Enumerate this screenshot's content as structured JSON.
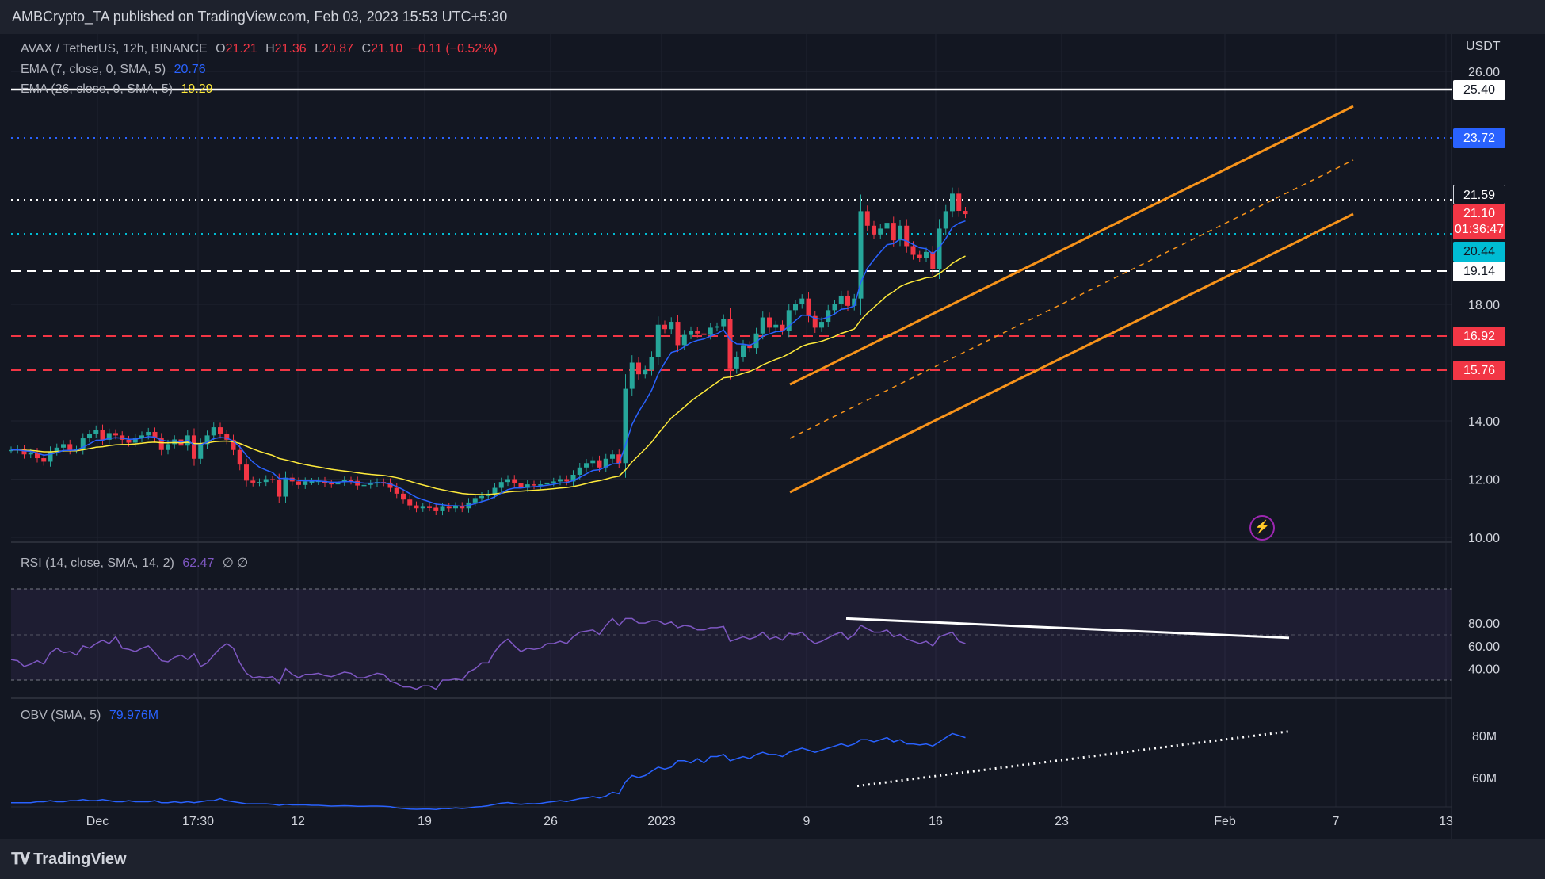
{
  "header": {
    "title": "AMBCrypto_TA published on TradingView.com, Feb 03, 2023 15:53 UTC+5:30"
  },
  "legend": {
    "symbol": "AVAX / TetherUS, 12h, BINANCE",
    "o_label": "O",
    "o": "21.21",
    "h_label": "H",
    "h": "21.36",
    "l_label": "L",
    "l": "20.87",
    "c_label": "C",
    "c": "21.10",
    "change": "−0.11 (−0.52%)",
    "ema7_name": "EMA (7, close, 0, SMA, 5)",
    "ema7_value": "20.76",
    "ema26_name": "EMA (26, close, 0, SMA, 5)",
    "ema26_value": "19.29",
    "rsi_name": "RSI (14, close, SMA, 14, 2)",
    "rsi_value": "62.47",
    "rsi_extra": "∅ ∅",
    "obv_name": "OBV (SMA, 5)",
    "obv_value": "79.976M"
  },
  "currency": "USDT",
  "price_tags": {
    "level_2540": "25.40",
    "level_2372": "23.72",
    "level_2159": "21.59",
    "current_price": "21.10",
    "countdown": "01:36:47",
    "level_2044": "20.44",
    "level_1914": "19.14",
    "level_1692": "16.92",
    "level_1576": "15.76"
  },
  "colors": {
    "background": "#131722",
    "up": "#26a69a",
    "down": "#f23645",
    "ema7": "#2962ff",
    "ema26": "#ffeb3b",
    "channel": "#f7931a",
    "rsi": "#7e57c2",
    "obv": "#2962ff"
  },
  "footer": {
    "brand": "TradingView"
  },
  "chart_data": [
    {
      "type": "candlestick",
      "title": "AVAX / TetherUS, 12h, BINANCE",
      "ylim": [
        10,
        27
      ],
      "y_ticks": [
        "10.00",
        "12.00",
        "14.00",
        "18.00",
        "26.00"
      ],
      "x_ticks": [
        "Dec",
        "17:30",
        "12",
        "19",
        "26",
        "2023",
        "9",
        "16",
        "23",
        "Feb",
        "7",
        "13"
      ],
      "closes": [
        13.0,
        13.03,
        12.85,
        12.92,
        12.72,
        12.6,
        12.95,
        13.08,
        13.2,
        13.0,
        13.02,
        13.4,
        13.55,
        13.7,
        13.35,
        13.58,
        13.5,
        13.35,
        13.25,
        13.4,
        13.5,
        13.62,
        13.4,
        13.0,
        13.2,
        13.36,
        13.15,
        13.5,
        12.7,
        13.2,
        13.5,
        13.78,
        13.55,
        13.35,
        13.0,
        12.5,
        11.95,
        11.88,
        11.9,
        12.0,
        11.98,
        11.4,
        12.05,
        11.92,
        11.8,
        11.92,
        11.92,
        11.94,
        11.86,
        11.82,
        11.9,
        11.96,
        11.94,
        11.78,
        11.8,
        11.86,
        11.9,
        11.88,
        11.7,
        11.5,
        11.3,
        11.1,
        11.0,
        11.05,
        11.02,
        10.9,
        11.05,
        11.0,
        11.08,
        11.0,
        11.2,
        11.35,
        11.42,
        11.5,
        11.7,
        11.9,
        12.0,
        11.85,
        11.7,
        11.82,
        11.78,
        11.82,
        11.88,
        11.92,
        12.0,
        11.92,
        12.15,
        12.4,
        12.55,
        12.65,
        12.4,
        12.7,
        12.85,
        12.55,
        15.1,
        16.0,
        15.6,
        15.75,
        16.2,
        17.3,
        17.15,
        17.4,
        16.6,
        16.95,
        17.1,
        17.0,
        16.95,
        17.2,
        17.25,
        17.5,
        15.8,
        16.2,
        16.6,
        16.5,
        17.0,
        17.55,
        17.2,
        17.3,
        17.1,
        17.8,
        18.0,
        18.2,
        17.6,
        17.2,
        17.4,
        17.8,
        18.0,
        18.3,
        17.95,
        18.2,
        21.2,
        20.7,
        20.4,
        20.6,
        20.8,
        20.2,
        20.7,
        20.0,
        19.7,
        19.6,
        19.8,
        19.2,
        20.6,
        21.2,
        21.8,
        21.21,
        21.1
      ],
      "series": [
        {
          "name": "EMA (7, close, 0, SMA, 5)",
          "last": 20.76
        },
        {
          "name": "EMA (26, close, 0, SMA, 5)",
          "last": 19.29
        }
      ],
      "horizontal_levels": [
        25.4,
        23.72,
        21.59,
        20.44,
        19.14,
        16.92,
        15.76
      ]
    },
    {
      "type": "line",
      "title": "RSI (14, close, SMA, 14, 2)",
      "ylim": [
        20,
        90
      ],
      "y_ticks": [
        "40.00",
        "60.00",
        "80.00"
      ],
      "band": [
        30,
        70
      ],
      "values": [
        48,
        47,
        42,
        44,
        47,
        44,
        54,
        58,
        54,
        55,
        52,
        60,
        58,
        62,
        65,
        62,
        68,
        58,
        57,
        55,
        58,
        60,
        54,
        47,
        46,
        50,
        52,
        48,
        53,
        42,
        45,
        52,
        58,
        62,
        58,
        45,
        36,
        32,
        33,
        32,
        33,
        27,
        40,
        35,
        32,
        35,
        35,
        36,
        34,
        33,
        35,
        37,
        36,
        32,
        32,
        34,
        36,
        35,
        29,
        27,
        24,
        24,
        22,
        25,
        25,
        22,
        30,
        30,
        31,
        30,
        37,
        40,
        45,
        45,
        55,
        62,
        66,
        60,
        55,
        58,
        57,
        58,
        62,
        62,
        64,
        62,
        68,
        72,
        73,
        74,
        70,
        78,
        84,
        78,
        84,
        84,
        80,
        80,
        82,
        82,
        79,
        81,
        76,
        78,
        77,
        74,
        74,
        76,
        76,
        77,
        64,
        66,
        68,
        66,
        68,
        72,
        66,
        68,
        65,
        71,
        70,
        72,
        66,
        62,
        64,
        67,
        70,
        72,
        66,
        70,
        78,
        75,
        72,
        72,
        74,
        68,
        70,
        66,
        64,
        62,
        64,
        60,
        68,
        70,
        72,
        64,
        62
      ],
      "trendline": {
        "from": 84,
        "to": 67
      }
    },
    {
      "type": "line",
      "title": "OBV (SMA, 5)",
      "y_ticks": [
        "60M",
        "80M"
      ],
      "unit": "M",
      "values": [
        48,
        48,
        48,
        48,
        48.5,
        48.5,
        49,
        48.5,
        48.5,
        49,
        49,
        49.5,
        49,
        49,
        49.5,
        49,
        48.5,
        48.5,
        49,
        48.5,
        48.5,
        48.5,
        49,
        48,
        48,
        48.5,
        48,
        48.5,
        48,
        48.5,
        49,
        49,
        50,
        49,
        48.5,
        48,
        47.5,
        47.5,
        47.5,
        47.5,
        47.3,
        46.8,
        47.3,
        47,
        47,
        47,
        46.8,
        46.8,
        46.6,
        46.4,
        46.5,
        46.6,
        46.5,
        46.3,
        46.3,
        46.4,
        46.4,
        46.3,
        46.1,
        45.6,
        45.3,
        45,
        44.9,
        45,
        45,
        44.8,
        45.3,
        45.2,
        45.6,
        45.3,
        45.6,
        46,
        46.2,
        46.6,
        47.2,
        47.8,
        48.1,
        47.6,
        47.3,
        47.6,
        47.5,
        47.7,
        48.2,
        48.6,
        49,
        48.6,
        49.3,
        50,
        50.3,
        51,
        50.3,
        51.2,
        53,
        52.3,
        58,
        61,
        60,
        61,
        63,
        65,
        64,
        65,
        68,
        68,
        67,
        69,
        67,
        70,
        70,
        71,
        68,
        69,
        70,
        69,
        71,
        72,
        71,
        71,
        70,
        72,
        73,
        74,
        73,
        72,
        73,
        74,
        75,
        76,
        75,
        76,
        78,
        78,
        77,
        78,
        79,
        77,
        78,
        76,
        76,
        75.5,
        76,
        75,
        77,
        79,
        81,
        80,
        79
      ],
      "trendline": {
        "from": 56,
        "to": 82
      }
    }
  ]
}
